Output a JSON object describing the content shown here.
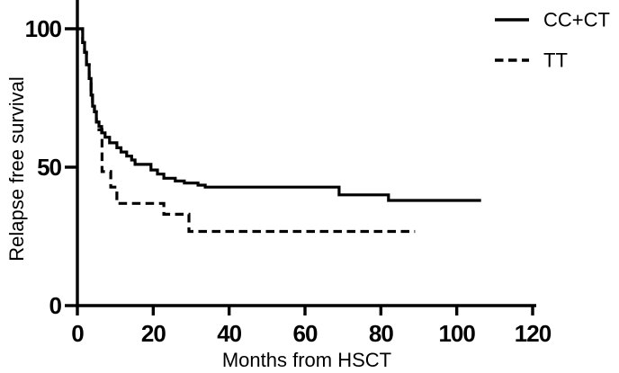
{
  "figure": {
    "background": "#ffffff",
    "line_color": "#000000"
  },
  "chart_data": {
    "type": "line",
    "subtype": "kaplan_meier_step",
    "title": "",
    "xlabel": "Months from HSCT",
    "ylabel": "Relapse free survival",
    "xlim": [
      0,
      120
    ],
    "ylim": [
      0,
      100
    ],
    "xticks": [
      "0",
      "20",
      "40",
      "60",
      "80",
      "100",
      "120"
    ],
    "yticks": [
      "0",
      "50",
      "100"
    ],
    "grid": false,
    "legend_position": "top-right",
    "series": [
      {
        "name": "CC+CT",
        "style": "solid",
        "end_x": 106.4,
        "steps": [
          [
            0,
            100
          ],
          [
            1.4,
            95
          ],
          [
            1.9,
            91.5
          ],
          [
            2.4,
            87
          ],
          [
            3.1,
            82
          ],
          [
            3.6,
            76
          ],
          [
            4,
            72
          ],
          [
            4.5,
            70
          ],
          [
            5,
            66.3
          ],
          [
            5.7,
            64.7
          ],
          [
            6.4,
            62.4
          ],
          [
            7.3,
            60.8
          ],
          [
            8.5,
            58.8
          ],
          [
            10.4,
            57
          ],
          [
            11.5,
            55.5
          ],
          [
            13,
            54
          ],
          [
            14.3,
            52.6
          ],
          [
            15.2,
            51
          ],
          [
            19.4,
            49
          ],
          [
            21.1,
            47.5
          ],
          [
            22.8,
            46
          ],
          [
            25.8,
            45
          ],
          [
            28.2,
            44.3
          ],
          [
            31.8,
            43.5
          ],
          [
            33.7,
            42.8
          ],
          [
            69,
            40
          ],
          [
            82,
            38
          ]
        ]
      },
      {
        "name": "TT",
        "style": "dashed",
        "end_x": 89,
        "steps": [
          [
            0,
            100
          ],
          [
            1.4,
            95
          ],
          [
            1.9,
            91.5
          ],
          [
            2.4,
            87
          ],
          [
            3.1,
            82
          ],
          [
            3.6,
            76
          ],
          [
            4,
            72
          ],
          [
            4.5,
            70
          ],
          [
            5,
            66.3
          ],
          [
            5.7,
            63.5
          ],
          [
            6.5,
            48.4
          ],
          [
            8.8,
            42.8
          ],
          [
            10.4,
            36.9
          ],
          [
            22.8,
            33
          ],
          [
            29.4,
            26.8
          ]
        ]
      }
    ]
  }
}
